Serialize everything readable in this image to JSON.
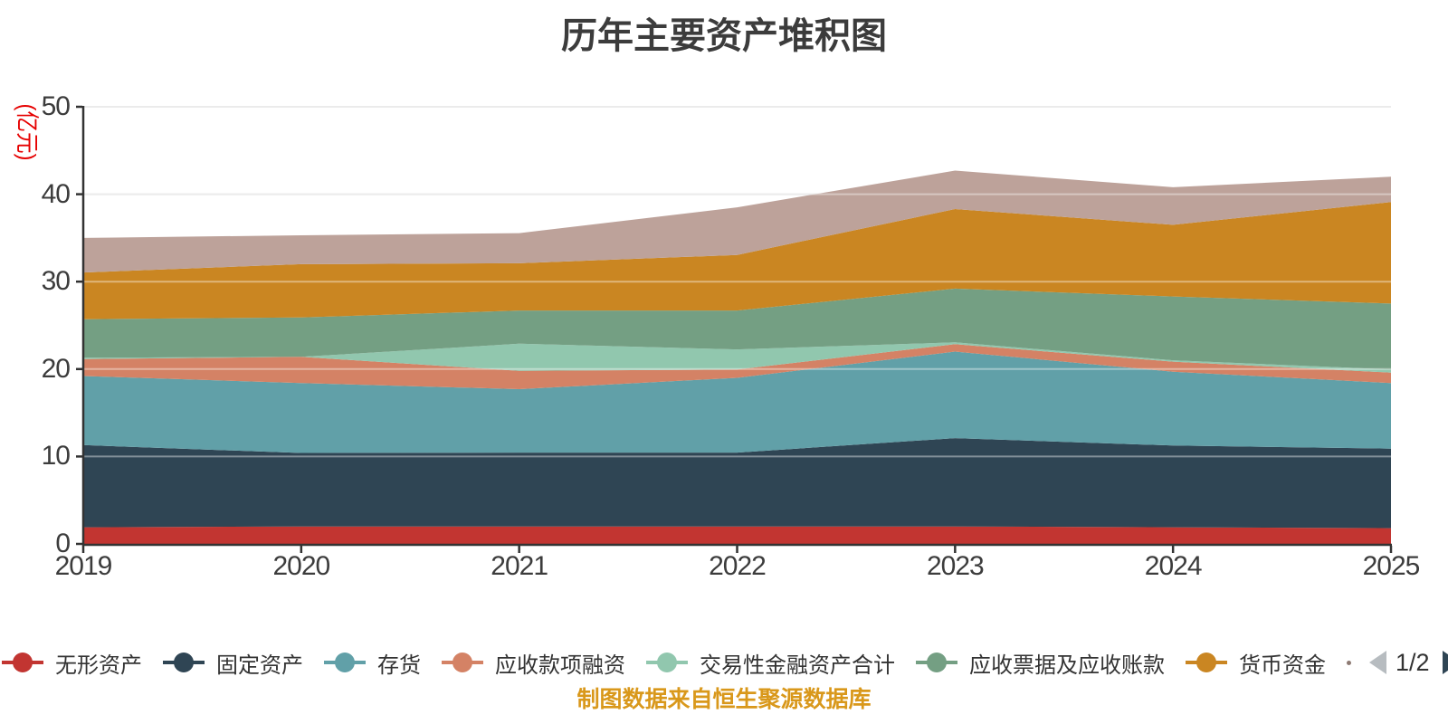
{
  "title": "历年主要资产堆积图",
  "y_axis": {
    "unit": "(亿元)",
    "ticks": [
      0,
      10,
      20,
      30,
      40,
      50
    ],
    "max": 50
  },
  "x_axis": {
    "categories": [
      "2019",
      "2020",
      "2021",
      "2022",
      "2023",
      "2024",
      "2025"
    ]
  },
  "legend": {
    "page": "1/2",
    "prev_icon": "left-arrow",
    "next_icon": "right-arrow"
  },
  "footer": "制图数据来自恒生聚源数据库",
  "chart_data": {
    "type": "area",
    "stacked": true,
    "title": "历年主要资产堆积图",
    "ylabel": "(亿元)",
    "x": [
      "2019",
      "2020",
      "2021",
      "2022",
      "2023",
      "2024",
      "2025"
    ],
    "ylim": [
      0,
      50
    ],
    "yticks": [
      0,
      10,
      20,
      30,
      40,
      50
    ],
    "grid": true,
    "legend_position": "bottom",
    "series": [
      {
        "name": "无形资产",
        "color": "#c23531",
        "values": [
          1.9,
          2.0,
          2.0,
          2.0,
          2.0,
          1.9,
          1.8
        ]
      },
      {
        "name": "固定资产",
        "color": "#2f4554",
        "values": [
          9.4,
          8.4,
          8.45,
          8.45,
          10.1,
          9.35,
          9.1
        ]
      },
      {
        "name": "存货",
        "color": "#61a0a8",
        "values": [
          7.9,
          8.0,
          7.25,
          8.55,
          9.9,
          8.45,
          7.5
        ]
      },
      {
        "name": "应收款项融资",
        "color": "#d48265",
        "values": [
          1.95,
          3.0,
          2.1,
          0.95,
          0.85,
          1.15,
          1.2
        ]
      },
      {
        "name": "交易性金融资产合计",
        "color": "#91c7ae",
        "values": [
          0.15,
          0.0,
          3.1,
          2.3,
          0.2,
          0.15,
          0.35
        ]
      },
      {
        "name": "应收票据及应收账款",
        "color": "#749f83",
        "values": [
          4.4,
          4.5,
          3.8,
          4.45,
          6.15,
          7.3,
          7.55
        ]
      },
      {
        "name": "货币资金",
        "color": "#ca8622",
        "values": [
          5.35,
          6.1,
          5.4,
          6.35,
          9.1,
          8.2,
          11.6
        ]
      },
      {
        "name": "",
        "color": "#bda29a",
        "values": [
          3.95,
          3.3,
          3.45,
          5.45,
          4.4,
          4.3,
          2.9
        ]
      }
    ]
  }
}
